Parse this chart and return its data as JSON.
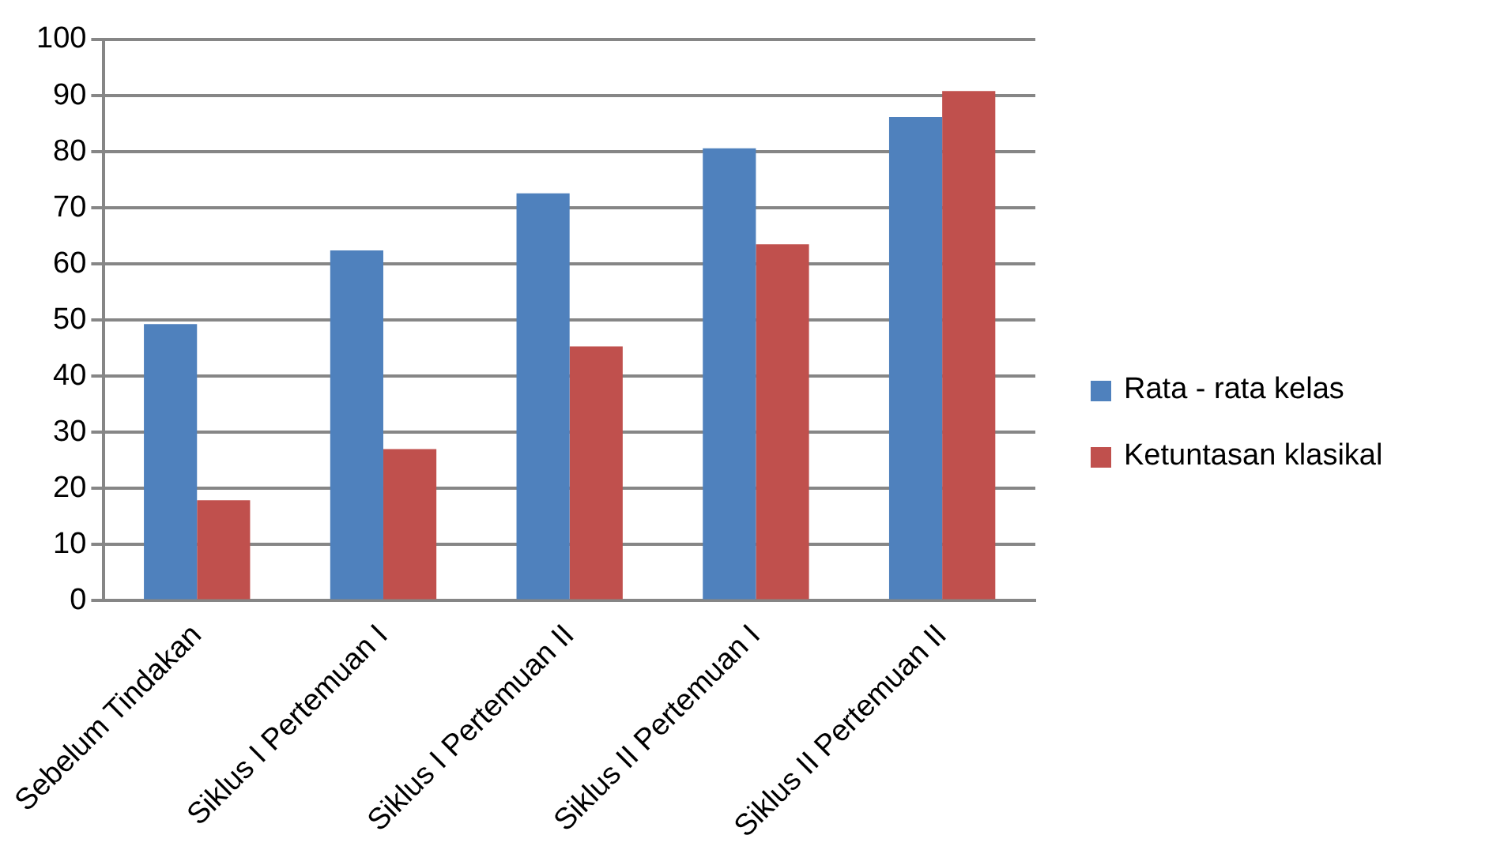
{
  "chart_data": {
    "type": "bar",
    "categories": [
      "Sebelum Tindakan",
      "Siklus I Pertemuan I",
      "Siklus I Pertemuan II",
      "Siklus II Pertemuan I",
      "Siklus II Pertemuan II"
    ],
    "series": [
      {
        "name": "Rata - rata kelas",
        "color": "#4f81bd",
        "values": [
          49.3,
          62.4,
          72.6,
          80.6,
          86.2
        ]
      },
      {
        "name": "Ketuntasan klasikal",
        "color": "#c0504d",
        "values": [
          17.9,
          27.0,
          45.3,
          63.5,
          90.8
        ]
      }
    ],
    "ylim": [
      0,
      100
    ],
    "yticks": [
      0,
      10,
      20,
      30,
      40,
      50,
      60,
      70,
      80,
      90,
      100
    ],
    "grid": "y",
    "legend": "right"
  }
}
